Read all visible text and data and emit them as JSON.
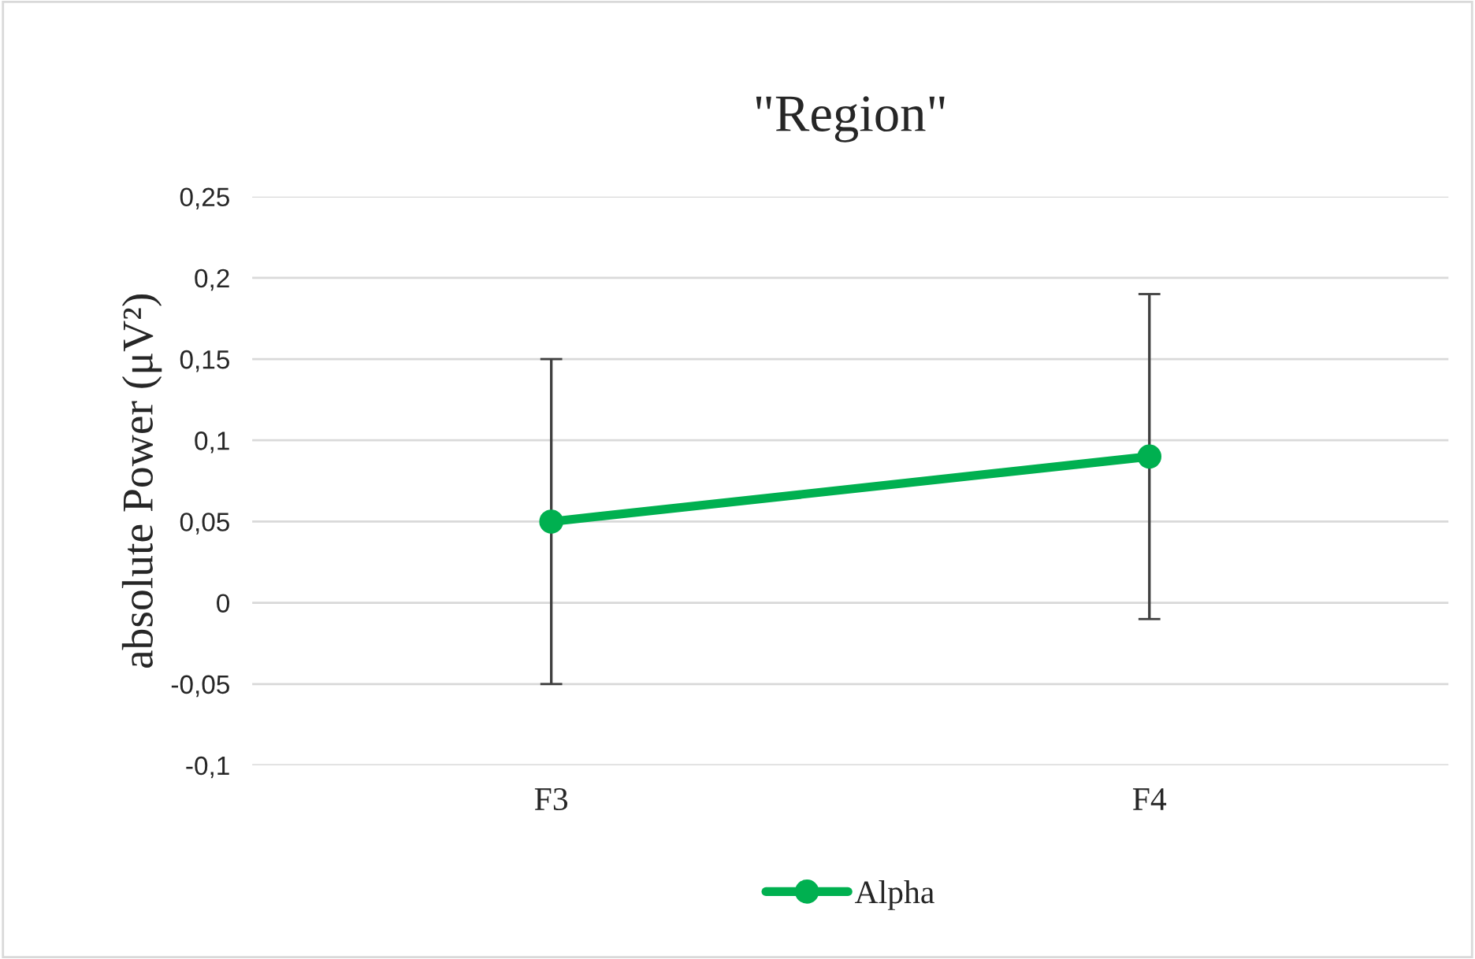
{
  "chart_data": {
    "type": "line",
    "title": "\"Region\"",
    "ylabel": "absolute Power (μV²)",
    "categories": [
      "F3",
      "F4"
    ],
    "series": [
      {
        "name": "Alpha",
        "color": "#00b050",
        "values": [
          0.05,
          0.09
        ],
        "errors": [
          0.1,
          0.1
        ]
      }
    ],
    "ylim": [
      -0.1,
      0.25
    ],
    "yticks": [
      {
        "value": -0.1,
        "label": "-0,1"
      },
      {
        "value": -0.05,
        "label": "-0,05"
      },
      {
        "value": 0,
        "label": "0"
      },
      {
        "value": 0.05,
        "label": "0,05"
      },
      {
        "value": 0.1,
        "label": "0,1"
      },
      {
        "value": 0.15,
        "label": "0,15"
      },
      {
        "value": 0.2,
        "label": "0,2"
      },
      {
        "value": 0.25,
        "label": "0,25"
      }
    ],
    "grid": "y",
    "legend": "bottom",
    "marker": "circle",
    "line_style": "solid"
  }
}
